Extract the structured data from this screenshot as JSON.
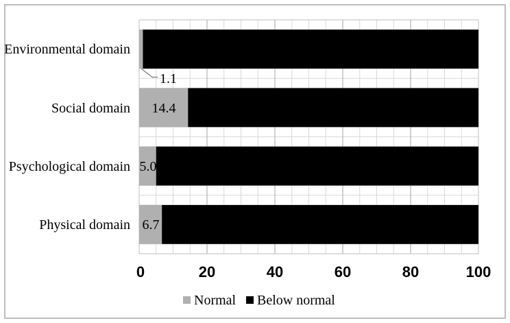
{
  "figure": {
    "background": "#ffffff",
    "border_color": "#bdbdbd"
  },
  "chart_data": {
    "type": "bar",
    "orientation": "horizontal",
    "stacked": true,
    "title": "",
    "xlabel": "",
    "ylabel": "",
    "xlim": [
      0,
      100
    ],
    "x_major_unit": 20,
    "x_minor_unit": 5,
    "grid": {
      "minor_color": "#d9d9d9",
      "major_color": "#a6a6a6",
      "border_color": "#bfbfbf"
    },
    "categories": [
      "Environmental domain",
      "Social domain",
      "Psychological domain",
      "Physical domain"
    ],
    "series": [
      {
        "name": "Normal",
        "color": "#b0b0b0",
        "values": [
          1.1,
          14.4,
          5.0,
          6.7
        ]
      },
      {
        "name": "Below normal",
        "color": "#000000",
        "values": [
          98.9,
          85.6,
          95.0,
          93.3
        ]
      }
    ],
    "data_labels": [
      "1.1",
      "14.4",
      "5.0",
      "6.7"
    ],
    "xticks": [
      "0",
      "20",
      "40",
      "60",
      "80",
      "100"
    ],
    "legend": {
      "position": "bottom",
      "items": [
        {
          "label": "Normal",
          "color": "#b0b0b0"
        },
        {
          "label": "Below normal",
          "color": "#000000"
        }
      ]
    }
  }
}
